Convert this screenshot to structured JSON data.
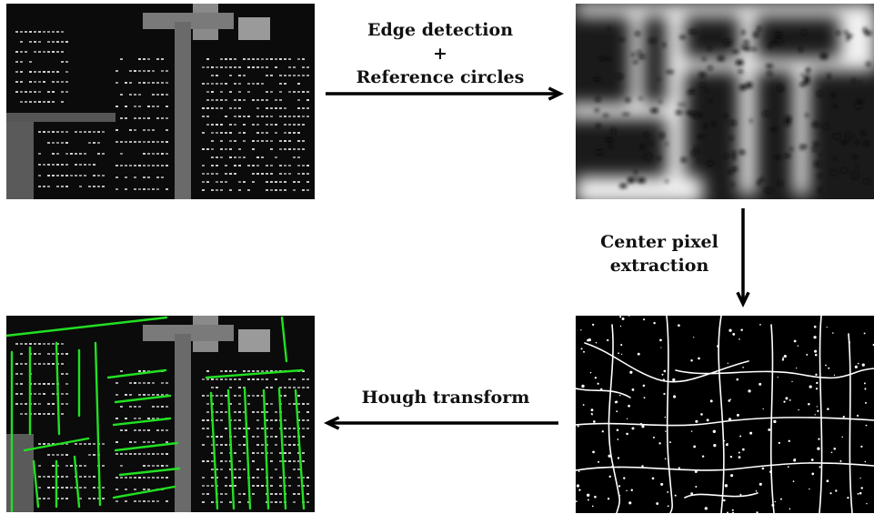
{
  "steps": {
    "edge_detection": "Edge detection",
    "plus": "+",
    "reference_circles": "Reference circles",
    "center_pixel": "Center pixel",
    "extraction": "extraction",
    "hough_transform": "Hough transform"
  },
  "colors": {
    "arrow": "#000000",
    "hough_lines": "#22e022",
    "background": "#ffffff"
  }
}
